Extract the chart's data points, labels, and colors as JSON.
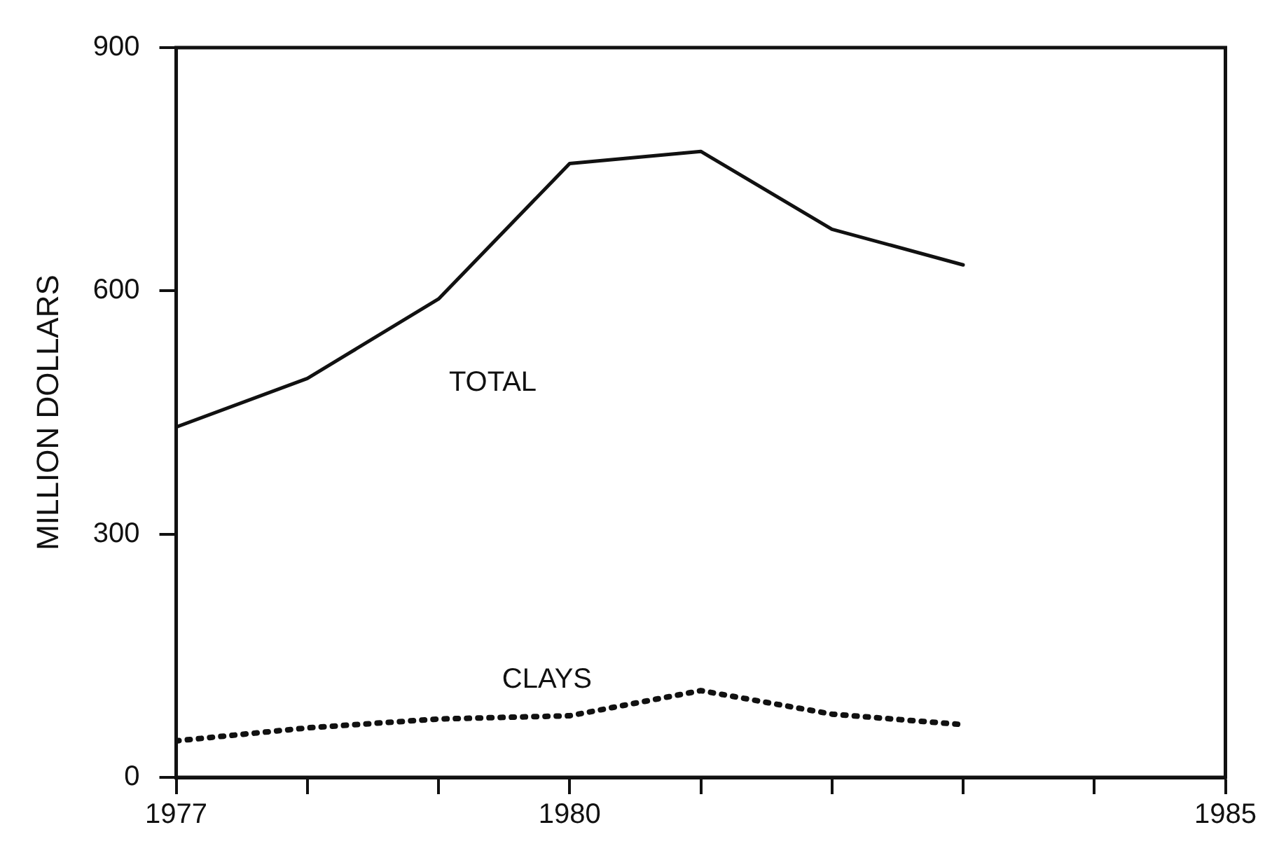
{
  "chart_data": {
    "type": "line",
    "ylabel": "MILLION DOLLARS",
    "xlim": [
      1977,
      1985
    ],
    "ylim": [
      0,
      900
    ],
    "xticks": [
      1977,
      {
        "value": 1978,
        "label": null
      },
      {
        "value": 1979,
        "label": null
      },
      1980,
      {
        "value": 1981,
        "label": null
      },
      {
        "value": 1982,
        "label": null
      },
      {
        "value": 1983,
        "label": null
      },
      {
        "value": 1984,
        "label": null
      },
      1985
    ],
    "yticks": [
      0,
      300,
      600,
      900
    ],
    "grid": false,
    "legend": false,
    "marker": "none",
    "x": [
      1977,
      1978,
      1979,
      1980,
      1981,
      1982,
      1983
    ],
    "series": [
      {
        "name": "TOTAL",
        "color": "#111111",
        "line_style": "solid",
        "values": [
          432,
          492,
          590,
          757,
          772,
          676,
          632
        ]
      },
      {
        "name": "CLAYS",
        "color": "#111111",
        "line_style": "dotted",
        "values": [
          45,
          61,
          72,
          76,
          107,
          78,
          65
        ]
      }
    ]
  }
}
